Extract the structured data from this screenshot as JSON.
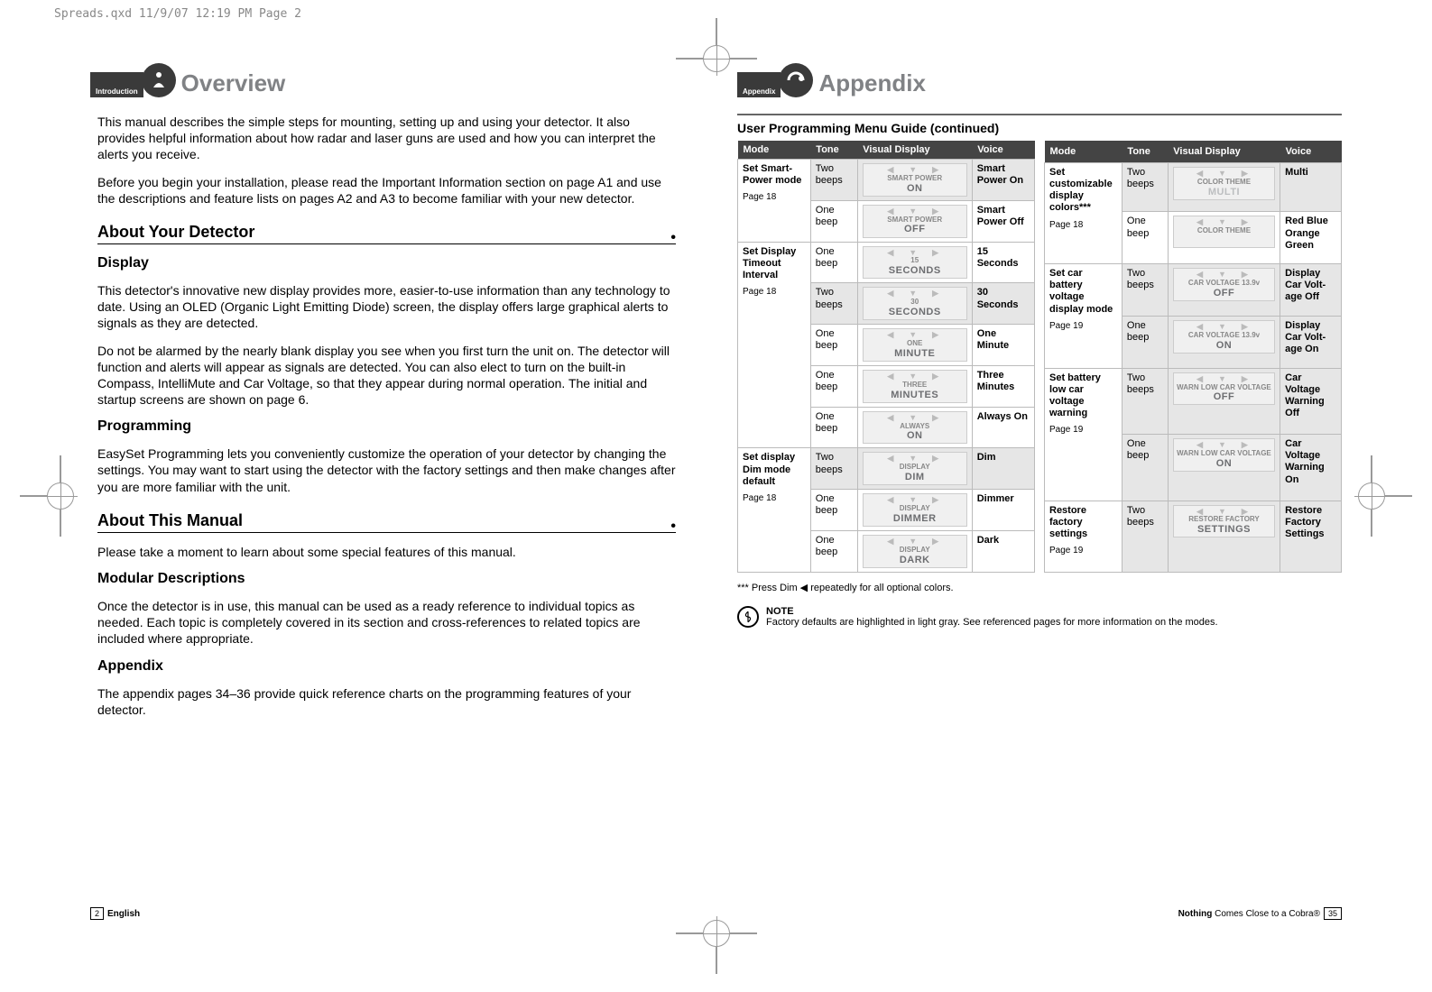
{
  "print_header": "Spreads.qxd  11/9/07  12:19 PM  Page 2",
  "left": {
    "tab_label": "Introduction",
    "title": "Overview",
    "para1": "This manual describes the simple steps for mounting, setting up and using your detector. It also provides helpful information about how radar and laser guns are used and how you can interpret the alerts you receive.",
    "para2": "Before you begin your installation, please read the Important Information section on page A1 and use the descriptions and feature lists on pages A2 and A3 to become familiar with your new detector.",
    "h1": "About Your Detector",
    "h2": "Display",
    "para3": "This detector's innovative new display provides more, easier-to-use information than any technology to date. Using an OLED (Organic Light Emitting Diode) screen, the display offers large graphical alerts to signals as they are detected.",
    "para4": "Do not be alarmed by the nearly blank display you see when you first turn the unit on. The detector will function and alerts will appear as signals are detected. You can also elect to turn on the built-in Compass, IntelliMute and Car Voltage, so that they appear during normal operation. The initial and startup screens are shown on page 6.",
    "h3": "Programming",
    "para5": "EasySet Programming lets you conveniently customize the operation of your detector by changing the settings. You may want to start using the detector with the factory settings and then make changes after you are more familiar with the unit.",
    "h4": "About This Manual",
    "para6": "Please take a moment to learn about some special features of this manual.",
    "h5": "Modular Descriptions",
    "para7": "Once the detector is in use, this manual can be used as a ready reference to individual topics as needed. Each topic is completely covered in its section and cross-references to related topics are included where appropriate.",
    "h6": "Appendix",
    "para8": "The appendix pages 34–36 provide quick reference charts on the programming features of your detector.",
    "page_num": "2",
    "footer": "English"
  },
  "right": {
    "tab_label": "Appendix",
    "title": "Appendix",
    "table_title": "User Programming Menu Guide (continued)",
    "headers": {
      "mode": "Mode",
      "tone": "Tone",
      "visual": "Visual Display",
      "voice": "Voice"
    },
    "table1": [
      {
        "mode": "Set Smart-Power mode",
        "page": "Page 18",
        "rows": [
          {
            "tone": "Two beeps",
            "d1": "SMART POWER",
            "d2": "ON",
            "voice": "Smart Power On",
            "hl": true
          },
          {
            "tone": "One beep",
            "d1": "SMART POWER",
            "d2": "OFF",
            "voice": "Smart Power Off"
          }
        ]
      },
      {
        "mode": "Set Display Timeout Interval",
        "page": "Page 18",
        "rows": [
          {
            "tone": "One beep",
            "d1": "15",
            "d2": "SECONDS",
            "voice": "15 Seconds"
          },
          {
            "tone": "Two beeps",
            "d1": "30",
            "d2": "SECONDS",
            "voice": "30 Seconds",
            "hl": true
          },
          {
            "tone": "One beep",
            "d1": "ONE",
            "d2": "MINUTE",
            "voice": "One Minute"
          },
          {
            "tone": "One beep",
            "d1": "THREE",
            "d2": "MINUTES",
            "voice": "Three Minutes"
          },
          {
            "tone": "One beep",
            "d1": "ALWAYS",
            "d2": "ON",
            "voice": "Always On"
          }
        ]
      },
      {
        "mode": "Set display Dim mode default",
        "page": "Page 18",
        "rows": [
          {
            "tone": "Two beeps",
            "d1": "DISPLAY",
            "d2": "DIM",
            "voice": "Dim",
            "hl": true
          },
          {
            "tone": "One beep",
            "d1": "DISPLAY",
            "d2": "DIMMER",
            "voice": "Dimmer"
          },
          {
            "tone": "One beep",
            "d1": "DISPLAY",
            "d2": "DARK",
            "voice": "Dark"
          }
        ]
      }
    ],
    "table2": [
      {
        "mode": "Set customizable display colors***",
        "page": "Page 18",
        "rows": [
          {
            "tone": "Two beeps",
            "d1": "COLOR THEME",
            "d2": "MULTI",
            "voice": "Multi",
            "hl": true,
            "multi": true
          },
          {
            "tone": "One beep",
            "d1": "COLOR THEME",
            "d2": "",
            "voice": "Red Blue Orange Green"
          }
        ]
      },
      {
        "mode": "Set car battery voltage display mode",
        "page": "Page 19",
        "rows": [
          {
            "tone": "Two beeps",
            "d1": "CAR VOLTAGE 13.9v",
            "d2": "OFF",
            "voice": "Display Car Volt-age Off",
            "hl": true
          },
          {
            "tone": "One beep",
            "d1": "CAR VOLTAGE 13.9v",
            "d2": "ON",
            "voice": "Display Car Volt-age On",
            "hl": true
          }
        ]
      },
      {
        "mode": "Set battery low car voltage warning",
        "page": "Page 19",
        "rows": [
          {
            "tone": "Two beeps",
            "d1": "WARN LOW CAR VOLTAGE",
            "d2": "OFF",
            "voice": "Car Voltage Warning Off",
            "hl": true
          },
          {
            "tone": "One beep",
            "d1": "WARN LOW CAR VOLTAGE",
            "d2": "ON",
            "voice": "Car Voltage Warning On",
            "hl": true
          }
        ]
      },
      {
        "mode": "Restore factory settings",
        "page": "Page 19",
        "rows": [
          {
            "tone": "Two beeps",
            "d1": "RESTORE FACTORY",
            "d2": "SETTINGS",
            "voice": "Restore Factory Settings",
            "hl": true
          }
        ]
      }
    ],
    "footnote": "*** Press Dim ◀  repeatedly for all optional colors.",
    "note_label": "NOTE",
    "note_text": "Factory defaults are highlighted in light gray. See referenced pages for more information on the modes.",
    "footer": "Nothing Comes Close to a Cobra®",
    "page_num": "35"
  }
}
